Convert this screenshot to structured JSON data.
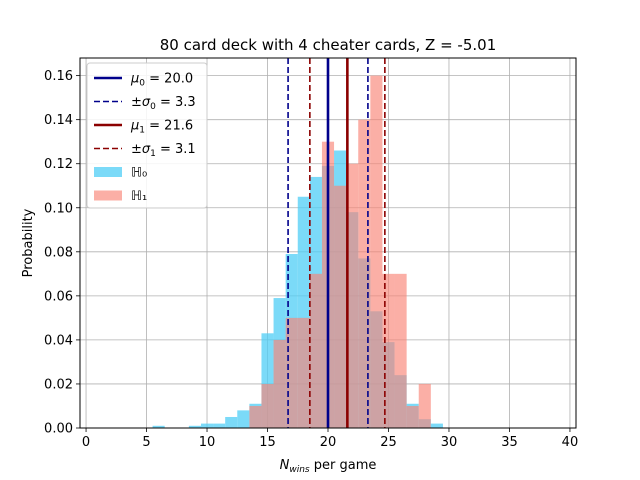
{
  "chart_data": {
    "type": "bar",
    "title": "80 card deck with 4 cheater cards, Z = -5.01",
    "xlabel_main": "N",
    "xlabel_sub": "wins",
    "xlabel_rest": " per game",
    "ylabel": "Probability",
    "xlim": [
      -0.5,
      40.5
    ],
    "ylim": [
      0,
      0.168
    ],
    "xticks": [
      0,
      5,
      10,
      15,
      20,
      25,
      30,
      35,
      40
    ],
    "yticks": [
      0.0,
      0.02,
      0.04,
      0.06,
      0.08,
      0.1,
      0.12,
      0.14,
      0.16
    ],
    "ytick_labels": [
      "0.00",
      "0.02",
      "0.04",
      "0.06",
      "0.08",
      "0.10",
      "0.12",
      "0.14",
      "0.16"
    ],
    "grid": true,
    "legend_position": "top-left",
    "series": [
      {
        "name": "ℍ₀",
        "color": "#4fcdf6",
        "x": [
          6,
          9,
          10,
          11,
          12,
          13,
          14,
          15,
          16,
          17,
          18,
          19,
          20,
          21,
          22,
          23,
          24,
          25,
          26,
          27,
          28,
          29
        ],
        "values": [
          0.001,
          0.001,
          0.002,
          0.002,
          0.005,
          0.008,
          0.011,
          0.043,
          0.059,
          0.079,
          0.105,
          0.114,
          0.119,
          0.126,
          0.098,
          0.077,
          0.053,
          0.039,
          0.024,
          0.011,
          0.004,
          0.002
        ]
      },
      {
        "name": "ℍ₁",
        "color": "#f98477",
        "x": [
          14,
          15,
          16,
          17,
          18,
          19,
          20,
          21,
          22,
          23,
          24,
          25,
          26,
          27,
          28
        ],
        "values": [
          0.01,
          0.02,
          0.04,
          0.05,
          0.05,
          0.07,
          0.13,
          0.11,
          0.12,
          0.14,
          0.16,
          0.07,
          0.07,
          0.01,
          0.02
        ]
      }
    ],
    "lines": [
      {
        "label_prefix": "μ",
        "label_sub": "0",
        "label_value": " = 20.0",
        "x": [
          20.0
        ],
        "color": "#00008b",
        "style": "solid"
      },
      {
        "label_prefix": "±σ",
        "label_sub": "0",
        "label_value": " = 3.3",
        "x": [
          16.7,
          23.3
        ],
        "color": "#00008b",
        "style": "dashed"
      },
      {
        "label_prefix": "μ",
        "label_sub": "1",
        "label_value": " = 21.6",
        "x": [
          21.6
        ],
        "color": "#8b0000",
        "style": "solid"
      },
      {
        "label_prefix": "±σ",
        "label_sub": "1",
        "label_value": " = 3.1",
        "x": [
          18.5,
          24.7
        ],
        "color": "#8b0000",
        "style": "dashed"
      }
    ]
  }
}
